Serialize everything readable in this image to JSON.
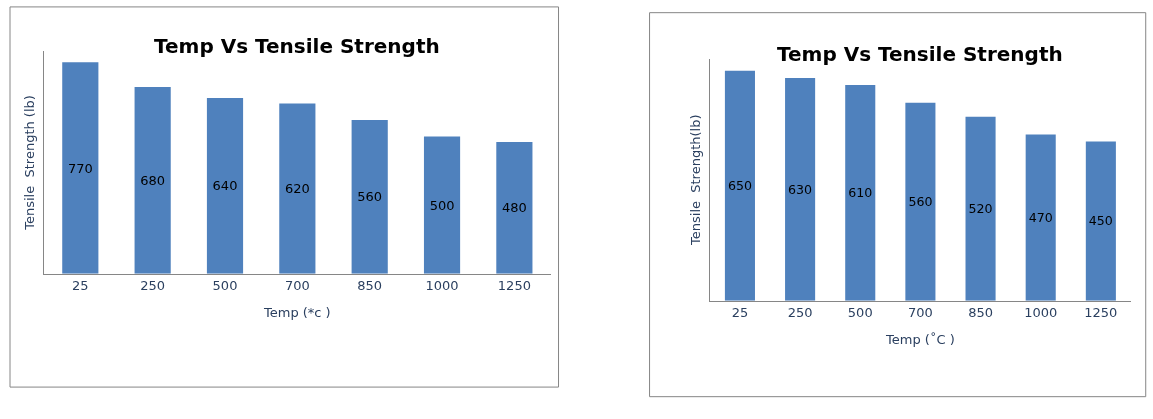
{
  "chart_data": [
    {
      "type": "bar",
      "title": "Temp Vs Tensile Strength",
      "xlabel": "Temp (*c )",
      "ylabel": "Tensile  Strength (lb)",
      "categories": [
        "25",
        "250",
        "500",
        "700",
        "850",
        "1000",
        "1250"
      ],
      "values": [
        770,
        680,
        640,
        620,
        560,
        500,
        480
      ],
      "color": "#4f81bd",
      "data_labels": true,
      "tick_labels": "x"
    },
    {
      "type": "bar",
      "title": "Temp Vs Tensile Strength",
      "xlabel": "Temp (˚C )",
      "ylabel": "Tensile  Strength(lb)",
      "categories": [
        "25",
        "250",
        "500",
        "700",
        "850",
        "1000",
        "1250"
      ],
      "values": [
        650,
        630,
        610,
        560,
        520,
        470,
        450
      ],
      "color": "#4f81bd",
      "data_labels": true,
      "tick_labels": "x"
    }
  ]
}
